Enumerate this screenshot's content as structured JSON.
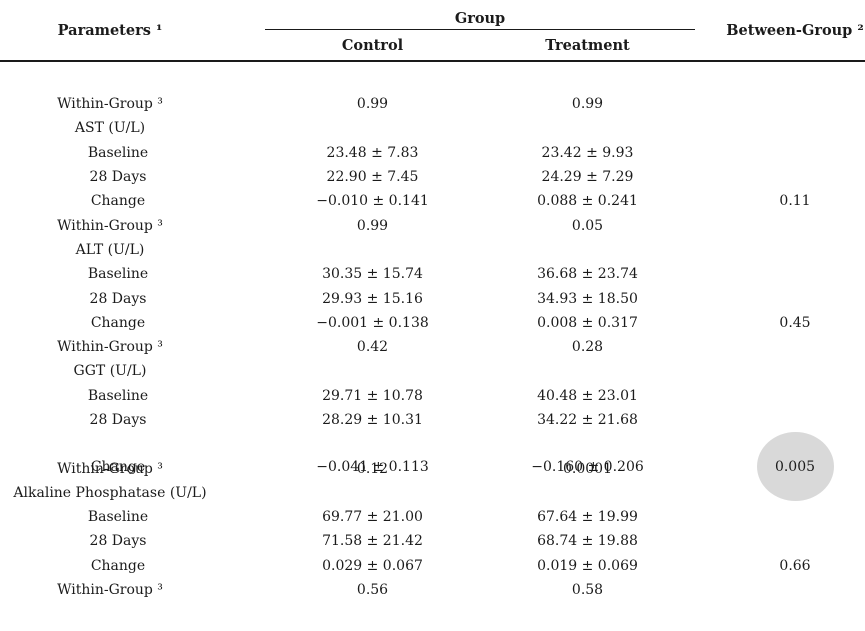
{
  "table": {
    "header": {
      "parameters": "Parameters ¹",
      "group": "Group",
      "control": "Control",
      "treatment": "Treatment",
      "between_group": "Between-Group ²"
    },
    "highlight_color": "#d9d9d9",
    "rows": [
      {
        "param": "Within-Group ³",
        "control": "0.99",
        "treatment": "0.99",
        "between": ""
      },
      {
        "param": "AST (U/L)",
        "control": "",
        "treatment": "",
        "between": ""
      },
      {
        "param": "Baseline",
        "control": "23.48 ± 7.83",
        "treatment": "23.42 ± 9.93",
        "between": ""
      },
      {
        "param": "28 Days",
        "control": "22.90 ± 7.45",
        "treatment": "24.29 ± 7.29",
        "between": ""
      },
      {
        "param": "Change",
        "control": "−0.010 ± 0.141",
        "treatment": "0.088 ± 0.241",
        "between": "0.11"
      },
      {
        "param": "Within-Group ³",
        "control": "0.99",
        "treatment": "0.05",
        "between": ""
      },
      {
        "param": "ALT (U/L)",
        "control": "",
        "treatment": "",
        "between": ""
      },
      {
        "param": "Baseline",
        "control": "30.35 ± 15.74",
        "treatment": "36.68 ± 23.74",
        "between": ""
      },
      {
        "param": "28 Days",
        "control": "29.93 ± 15.16",
        "treatment": "34.93 ± 18.50",
        "between": ""
      },
      {
        "param": "Change",
        "control": "−0.001 ± 0.138",
        "treatment": "0.008 ± 0.317",
        "between": "0.45"
      },
      {
        "param": "Within-Group ³",
        "control": "0.42",
        "treatment": "0.28",
        "between": ""
      },
      {
        "param": "GGT (U/L)",
        "control": "",
        "treatment": "",
        "between": ""
      },
      {
        "param": "Baseline",
        "control": "29.71 ± 10.78",
        "treatment": "40.48 ± 23.01",
        "between": ""
      },
      {
        "param": "28 Days",
        "control": "28.29 ± 10.31",
        "treatment": "34.22 ± 21.68",
        "between": ""
      },
      {
        "param": "Change",
        "control": "−0.041 ± 0.113",
        "treatment": "−0.160 ± 0.206",
        "between": "0.005"
      },
      {
        "param": "Within-Group ³",
        "control": "0.12",
        "treatment": "0.0001",
        "between": ""
      },
      {
        "param": "Alkaline Phosphatase (U/L)",
        "control": "",
        "treatment": "",
        "between": ""
      },
      {
        "param": "Baseline",
        "control": "69.77 ± 21.00",
        "treatment": "67.64 ± 19.99",
        "between": ""
      },
      {
        "param": "28 Days",
        "control": "71.58 ± 21.42",
        "treatment": "68.74 ± 19.88",
        "between": ""
      },
      {
        "param": "Change",
        "control": "0.029 ± 0.067",
        "treatment": "0.019 ± 0.069",
        "between": "0.66"
      },
      {
        "param": "Within-Group ³",
        "control": "0.56",
        "treatment": "0.58",
        "between": ""
      }
    ]
  }
}
